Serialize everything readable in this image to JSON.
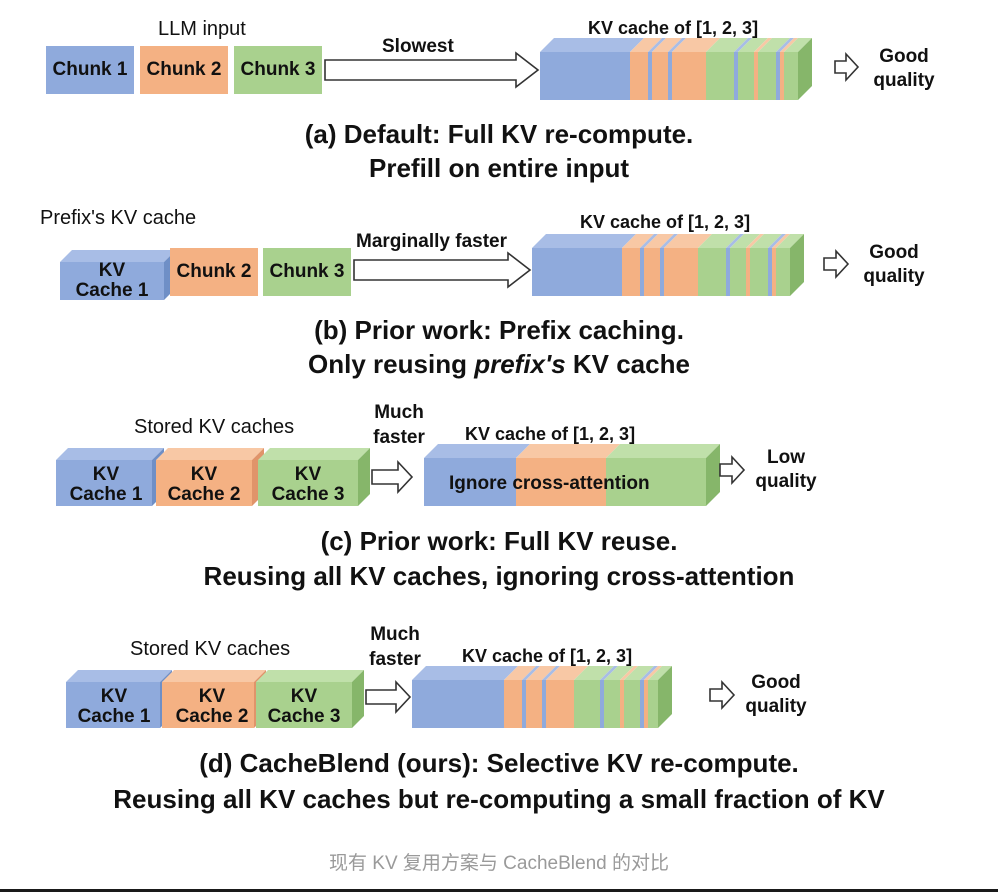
{
  "colors": {
    "blue": "#8faadc",
    "orange": "#f4b183",
    "green": "#a9d18e",
    "text": "#111111",
    "footer": "#9a9a9a"
  },
  "panel_a": {
    "top_label": "LLM input",
    "chunks": [
      "Chunk 1",
      "Chunk 2",
      "Chunk 3"
    ],
    "arrow_label": "Slowest",
    "cache_label": "KV cache of [1, 2, 3]",
    "quality": [
      "Good",
      "quality"
    ],
    "caption": [
      "(a) Default: Full KV re-compute.",
      "Prefill on entire input"
    ]
  },
  "panel_b": {
    "top_label": "Prefix's KV cache",
    "cache_box": [
      "KV",
      "Cache 1"
    ],
    "chunks": [
      "Chunk 2",
      "Chunk 3"
    ],
    "arrow_label": "Marginally faster",
    "cache_label": "KV cache of [1, 2, 3]",
    "quality": [
      "Good",
      "quality"
    ],
    "caption_line1": "(b) Prior work: Prefix caching.",
    "caption_line2_pre": "Only reusing ",
    "caption_line2_em": "prefix's",
    "caption_line2_post": " KV cache"
  },
  "panel_c": {
    "top_label": "Stored KV caches",
    "boxes": [
      [
        "KV",
        "Cache 1"
      ],
      [
        "KV",
        "Cache 2"
      ],
      [
        "KV",
        "Cache 3"
      ]
    ],
    "arrow_label": [
      "Much",
      "faster"
    ],
    "cache_label": "KV cache of [1, 2, 3]",
    "cache_inner": "Ignore cross-attention",
    "quality": [
      "Low",
      "quality"
    ],
    "caption": [
      "(c) Prior work: Full KV reuse.",
      "Reusing all KV caches, ignoring cross-attention"
    ]
  },
  "panel_d": {
    "top_label": "Stored KV caches",
    "boxes": [
      [
        "KV",
        "Cache 1"
      ],
      [
        "KV",
        "Cache 2"
      ],
      [
        "KV",
        "Cache 3"
      ]
    ],
    "arrow_label": [
      "Much",
      "faster"
    ],
    "cache_label": "KV cache of [1, 2, 3]",
    "quality": [
      "Good",
      "quality"
    ],
    "caption": [
      "(d) CacheBlend (ours): Selective KV re-compute.",
      "Reusing all KV caches but re-computing a small fraction of KV"
    ]
  },
  "footer": "现有 KV 复用方案与 CacheBlend 的对比"
}
